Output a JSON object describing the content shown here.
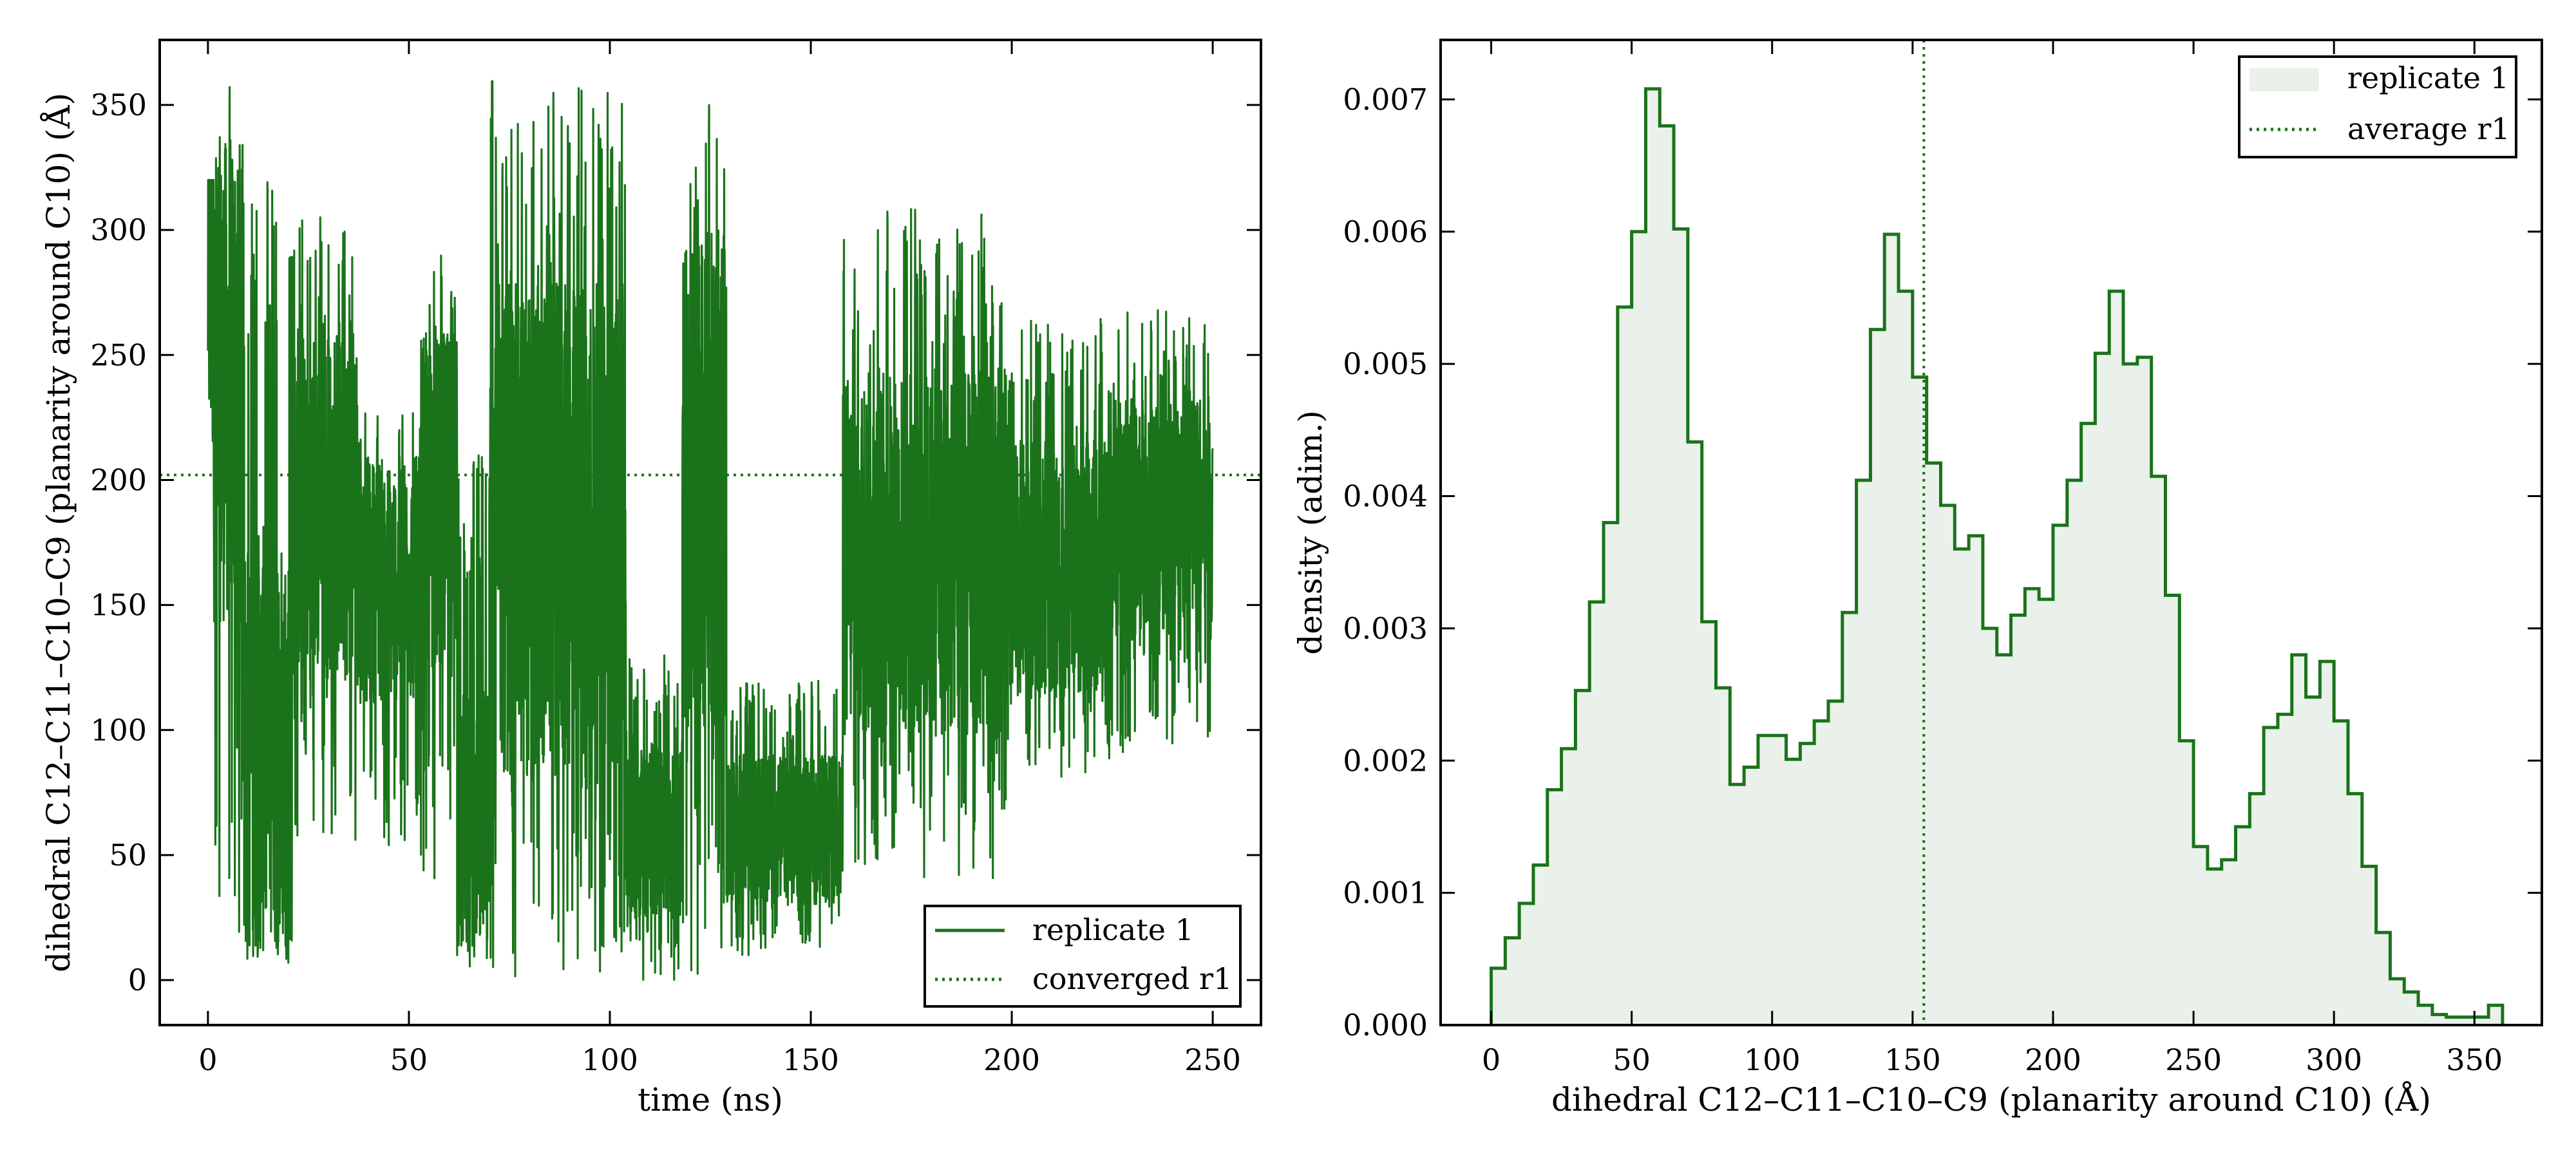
{
  "colors": {
    "series": "#1a731a",
    "hist_fill": "#eaf1ea",
    "axis": "#000000"
  },
  "chart_data": [
    {
      "type": "line",
      "xlabel": "time (ns)",
      "ylabel": "dihedral C12–C11–C10–C9 (planarity around C10) (Å)",
      "xlim": [
        -12,
        262
      ],
      "ylim": [
        -18,
        376
      ],
      "xticks": [
        0,
        50,
        100,
        150,
        200,
        250
      ],
      "yticks": [
        0,
        50,
        100,
        150,
        200,
        250,
        300,
        350
      ],
      "grid": false,
      "legend_position": "lower right",
      "series": [
        {
          "name": "replicate 1",
          "style": "solid",
          "segments": [
            {
              "t0": 0,
              "t1": 1.5,
              "low": 10,
              "high": 320,
              "mean": 285
            },
            {
              "t0": 1.5,
              "t1": 9,
              "low": 5,
              "high": 360,
              "mean": 240
            },
            {
              "t0": 9,
              "t1": 21,
              "low": 5,
              "high": 320,
              "mean": 95
            },
            {
              "t0": 21,
              "t1": 37,
              "low": 55,
              "high": 310,
              "mean": 190
            },
            {
              "t0": 37,
              "t1": 53,
              "low": 50,
              "high": 230,
              "mean": 160
            },
            {
              "t0": 53,
              "t1": 62,
              "low": 40,
              "high": 290,
              "mean": 190
            },
            {
              "t0": 62,
              "t1": 70,
              "low": 5,
              "high": 210,
              "mean": 60
            },
            {
              "t0": 70,
              "t1": 104,
              "low": 0,
              "high": 360,
              "mean": 180
            },
            {
              "t0": 104,
              "t1": 118,
              "low": 0,
              "high": 130,
              "mean": 60
            },
            {
              "t0": 118,
              "t1": 129,
              "low": 0,
              "high": 360,
              "mean": 200
            },
            {
              "t0": 129,
              "t1": 158,
              "low": 10,
              "high": 120,
              "mean": 60
            },
            {
              "t0": 158,
              "t1": 200,
              "low": 40,
              "high": 310,
              "mean": 170
            },
            {
              "t0": 200,
              "t1": 225,
              "low": 80,
              "high": 265,
              "mean": 165
            },
            {
              "t0": 225,
              "t1": 250,
              "low": 90,
              "high": 268,
              "mean": 185
            }
          ]
        },
        {
          "name": "converged r1",
          "style": "dotted",
          "y": 202
        }
      ]
    },
    {
      "type": "histogram",
      "xlabel": "dihedral C12–C11–C10–C9 (planarity around C10) (Å)",
      "ylabel": "density (adim.)",
      "xlim": [
        -18,
        374
      ],
      "ylim": [
        0,
        0.00745
      ],
      "xticks": [
        0,
        50,
        100,
        150,
        200,
        250,
        300,
        350
      ],
      "yticks": [
        "0.000",
        "0.001",
        "0.002",
        "0.003",
        "0.004",
        "0.005",
        "0.006",
        "0.007"
      ],
      "grid": false,
      "legend_position": "upper right",
      "bin_start": 0,
      "bin_width": 5,
      "values": [
        0.00043,
        0.00066,
        0.00092,
        0.00121,
        0.00178,
        0.00209,
        0.00253,
        0.0032,
        0.0038,
        0.00543,
        0.006,
        0.00708,
        0.0068,
        0.00602,
        0.00441,
        0.00305,
        0.00255,
        0.00182,
        0.00195,
        0.00219,
        0.00219,
        0.00201,
        0.00213,
        0.0023,
        0.00245,
        0.00312,
        0.00412,
        0.00526,
        0.00598,
        0.00555,
        0.0049,
        0.00425,
        0.00393,
        0.0036,
        0.0037,
        0.003,
        0.0028,
        0.0031,
        0.0033,
        0.00322,
        0.00378,
        0.00412,
        0.00455,
        0.00508,
        0.00555,
        0.005,
        0.00505,
        0.00415,
        0.00325,
        0.00215,
        0.00135,
        0.00118,
        0.00125,
        0.0015,
        0.00175,
        0.00225,
        0.00235,
        0.0028,
        0.00248,
        0.00275,
        0.0023,
        0.00175,
        0.0012,
        0.0007,
        0.00035,
        0.00025,
        0.00015,
        8e-05,
        6e-05,
        6e-05,
        6e-05,
        0.00015
      ],
      "series": [
        {
          "name": "replicate 1",
          "style": "filled-step"
        },
        {
          "name": "average r1",
          "style": "dotted-vertical",
          "x": 154
        }
      ]
    }
  ]
}
